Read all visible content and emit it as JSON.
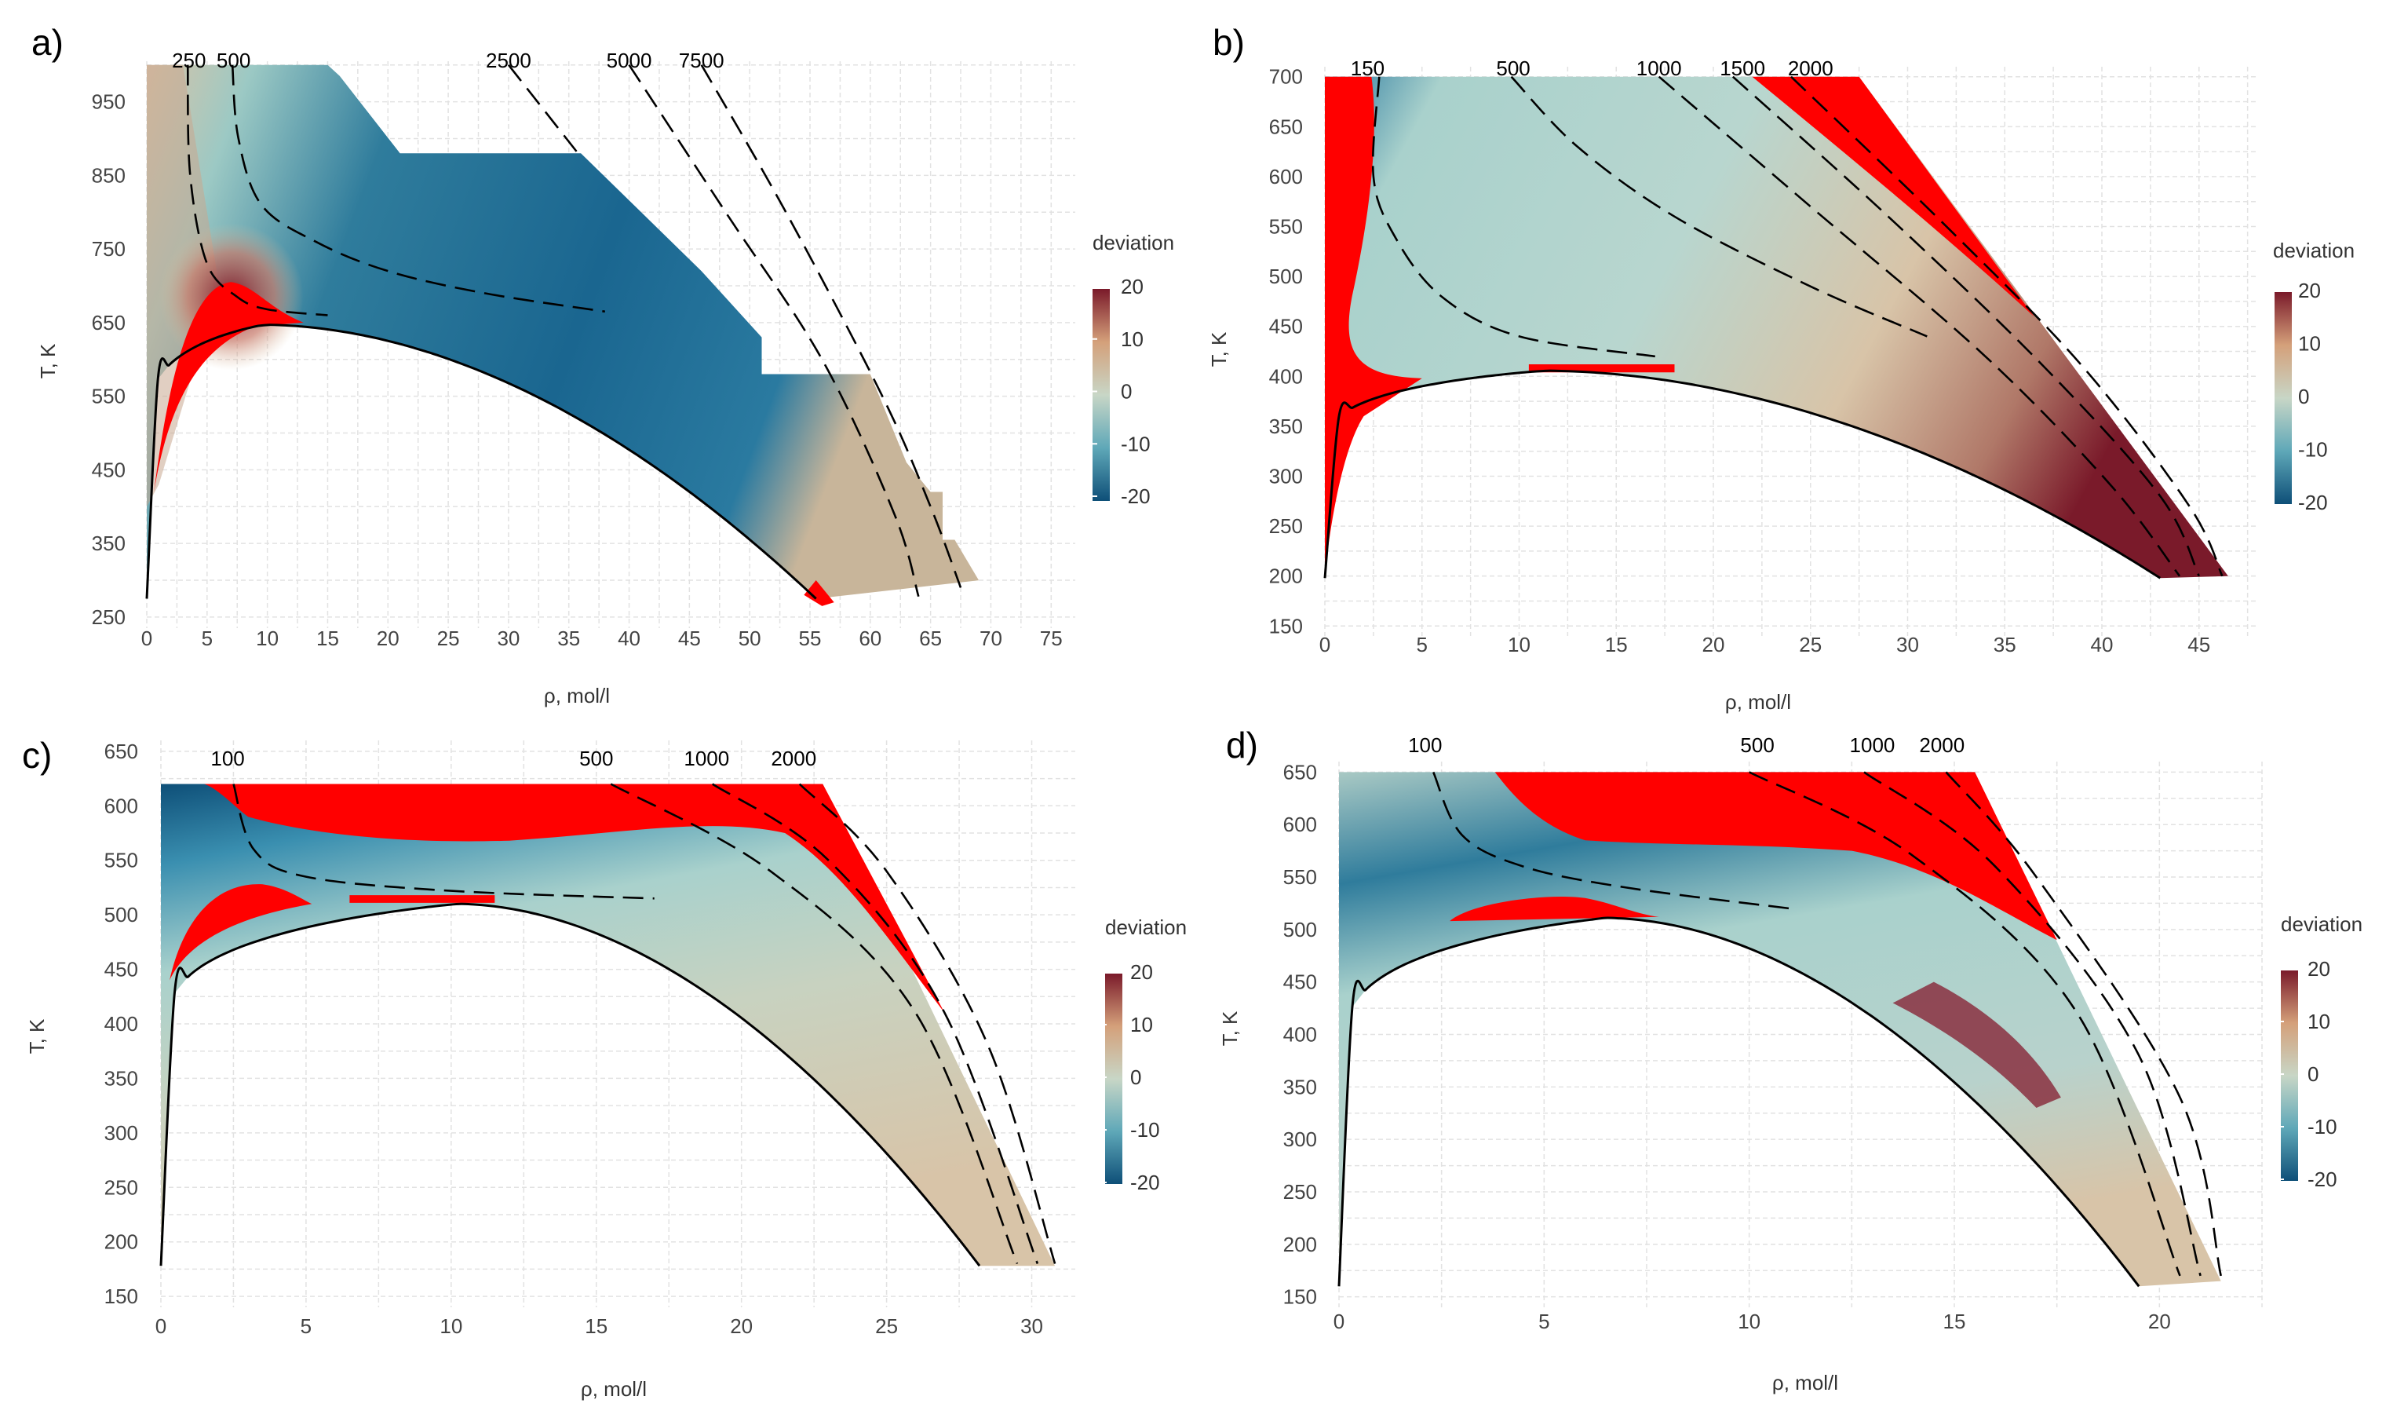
{
  "colors": {
    "grid": "#e2e2e2",
    "extreme": "#ff0000",
    "low": "#0e4f78",
    "mid": "#a9d1cc",
    "high": "#7a1a2a"
  },
  "chart_data": [
    {
      "panel": "a)",
      "type": "heatmap",
      "xlabel": "ρ, mol/l",
      "ylabel": "T, K",
      "xlim": [
        0,
        77
      ],
      "ylim": [
        235,
        1005
      ],
      "xticks": [
        "0",
        "5",
        "10",
        "15",
        "20",
        "25",
        "30",
        "35",
        "40",
        "45",
        "50",
        "55",
        "60",
        "65",
        "70",
        "75"
      ],
      "yticks": [
        "250",
        "350",
        "450",
        "550",
        "650",
        "750",
        "850",
        "950"
      ],
      "legend_title": "deviation",
      "legend_ticks": [
        "20",
        "10",
        "0",
        "-10",
        "-20"
      ],
      "critical": [
        9.7,
        647
      ],
      "triple_density": 55.5,
      "isobars": [
        {
          "label": "250",
          "lx": 3.5,
          "pt": [
            [
              3.4,
              1000
            ],
            [
              3.6,
              850
            ],
            [
              5,
              730
            ],
            [
              7.5,
              685
            ],
            [
              10,
              668
            ],
            [
              15,
              660
            ]
          ]
        },
        {
          "label": "500",
          "lx": 7.2,
          "pt": [
            [
              7.1,
              1000
            ],
            [
              7.6,
              900
            ],
            [
              9.5,
              810
            ],
            [
              14,
              760
            ],
            [
              20,
              720
            ],
            [
              28,
              690
            ],
            [
              38,
              665
            ]
          ]
        },
        {
          "label": "2500",
          "lx": 30,
          "pt": [
            [
              30,
              1000
            ],
            [
              36,
              875
            ]
          ]
        },
        {
          "label": "5000",
          "lx": 40,
          "pt": [
            [
              40,
              1000
            ],
            [
              48,
              800
            ],
            [
              56,
              600
            ],
            [
              62,
              390
            ],
            [
              64,
              278
            ]
          ]
        },
        {
          "label": "7500",
          "lx": 46,
          "pt": [
            [
              46,
              1000
            ],
            [
              53,
              800
            ],
            [
              61,
              550
            ],
            [
              65,
              400
            ],
            [
              67.5,
              290
            ]
          ]
        }
      ]
    },
    {
      "panel": "b)",
      "type": "heatmap",
      "xlabel": "ρ, mol/l",
      "ylabel": "T, K",
      "xlim": [
        0,
        48
      ],
      "ylim": [
        140,
        710
      ],
      "xticks": [
        "0",
        "5",
        "10",
        "15",
        "20",
        "25",
        "30",
        "35",
        "40",
        "45"
      ],
      "yticks": [
        "150",
        "200",
        "250",
        "300",
        "350",
        "400",
        "450",
        "500",
        "550",
        "600",
        "650",
        "700"
      ],
      "legend_title": "deviation",
      "legend_ticks": [
        "20",
        "10",
        "0",
        "-10",
        "-20"
      ],
      "critical": [
        11.3,
        405.6
      ],
      "triple_density": 43.0,
      "isobars": [
        {
          "label": "150",
          "lx": 2.2,
          "pt": [
            [
              2.8,
              700
            ],
            [
              2.5,
              600
            ],
            [
              3.6,
              540
            ],
            [
              6,
              480
            ],
            [
              10,
              440
            ],
            [
              17,
              420
            ]
          ]
        },
        {
          "label": "500",
          "lx": 9.7,
          "pt": [
            [
              9.6,
              700
            ],
            [
              13,
              630
            ],
            [
              18,
              560
            ],
            [
              25,
              490
            ],
            [
              31,
              440
            ]
          ]
        },
        {
          "label": "1000",
          "lx": 17.2,
          "pt": [
            [
              17.2,
              700
            ],
            [
              25,
              570
            ],
            [
              34,
              420
            ],
            [
              40.5,
              290
            ],
            [
              44,
              200
            ]
          ]
        },
        {
          "label": "1500",
          "lx": 21.5,
          "pt": [
            [
              21,
              700
            ],
            [
              29,
              560
            ],
            [
              37,
              410
            ],
            [
              43,
              280
            ],
            [
              45,
              200
            ]
          ]
        },
        {
          "label": "2000",
          "lx": 25,
          "pt": [
            [
              24,
              700
            ],
            [
              32,
              550
            ],
            [
              39,
              410
            ],
            [
              44.5,
              270
            ],
            [
              46.2,
              200
            ]
          ]
        }
      ]
    },
    {
      "panel": "c)",
      "type": "heatmap",
      "xlabel": "ρ, mol/l",
      "ylabel": "T, K",
      "xlim": [
        0,
        31.5
      ],
      "ylim": [
        140,
        660
      ],
      "xticks": [
        "0",
        "5",
        "10",
        "15",
        "20",
        "25",
        "30"
      ],
      "yticks": [
        "150",
        "200",
        "250",
        "300",
        "350",
        "400",
        "450",
        "500",
        "550",
        "600",
        "650"
      ],
      "legend_title": "deviation",
      "legend_ticks": [
        "20",
        "10",
        "0",
        "-10",
        "-20"
      ],
      "critical": [
        10.2,
        510
      ],
      "triple_density": 28.2,
      "isobars": [
        {
          "label": "100",
          "lx": 2.3,
          "pt": [
            [
              2.5,
              620
            ],
            [
              3.2,
              560
            ],
            [
              5,
              535
            ],
            [
              10,
              522
            ],
            [
              17,
              515
            ]
          ]
        },
        {
          "label": "500",
          "lx": 15,
          "pt": [
            [
              15.5,
              620
            ],
            [
              21,
              540
            ],
            [
              26,
              410
            ],
            [
              29.5,
              180
            ]
          ]
        },
        {
          "label": "1000",
          "lx": 18.8,
          "pt": [
            [
              19,
              620
            ],
            [
              23,
              550
            ],
            [
              27,
              410
            ],
            [
              30.2,
              180
            ]
          ]
        },
        {
          "label": "2000",
          "lx": 21.8,
          "pt": [
            [
              22,
              620
            ],
            [
              25,
              540
            ],
            [
              28.5,
              380
            ],
            [
              30.8,
              180
            ]
          ]
        }
      ]
    },
    {
      "panel": "d)",
      "type": "heatmap",
      "xlabel": "ρ, mol/l",
      "ylabel": "T, K",
      "xlim": [
        0,
        22.5
      ],
      "ylim": [
        140,
        660
      ],
      "xticks": [
        "0",
        "5",
        "10",
        "15",
        "20"
      ],
      "yticks": [
        "150",
        "200",
        "250",
        "300",
        "350",
        "400",
        "450",
        "500",
        "550",
        "600",
        "650"
      ],
      "legend_title": "deviation",
      "legend_ticks": [
        "20",
        "10",
        "0",
        "-10",
        "-20"
      ],
      "critical": [
        6.5,
        511
      ],
      "triple_density": 19.5,
      "isobars": [
        {
          "label": "100",
          "lx": 2.1,
          "pt": [
            [
              2.3,
              650
            ],
            [
              3,
              590
            ],
            [
              4.5,
              560
            ],
            [
              7,
              540
            ],
            [
              11,
              520
            ]
          ]
        },
        {
          "label": "500",
          "lx": 10.2,
          "pt": [
            [
              10,
              650
            ],
            [
              14,
              570
            ],
            [
              18,
              420
            ],
            [
              20.5,
              170
            ]
          ]
        },
        {
          "label": "1000",
          "lx": 13,
          "pt": [
            [
              12.8,
              650
            ],
            [
              16,
              560
            ],
            [
              19.5,
              380
            ],
            [
              21,
              170
            ]
          ]
        },
        {
          "label": "2000",
          "lx": 14.7,
          "pt": [
            [
              14.8,
              650
            ],
            [
              17,
              550
            ],
            [
              20.5,
              340
            ],
            [
              21.5,
              170
            ]
          ]
        }
      ]
    }
  ]
}
